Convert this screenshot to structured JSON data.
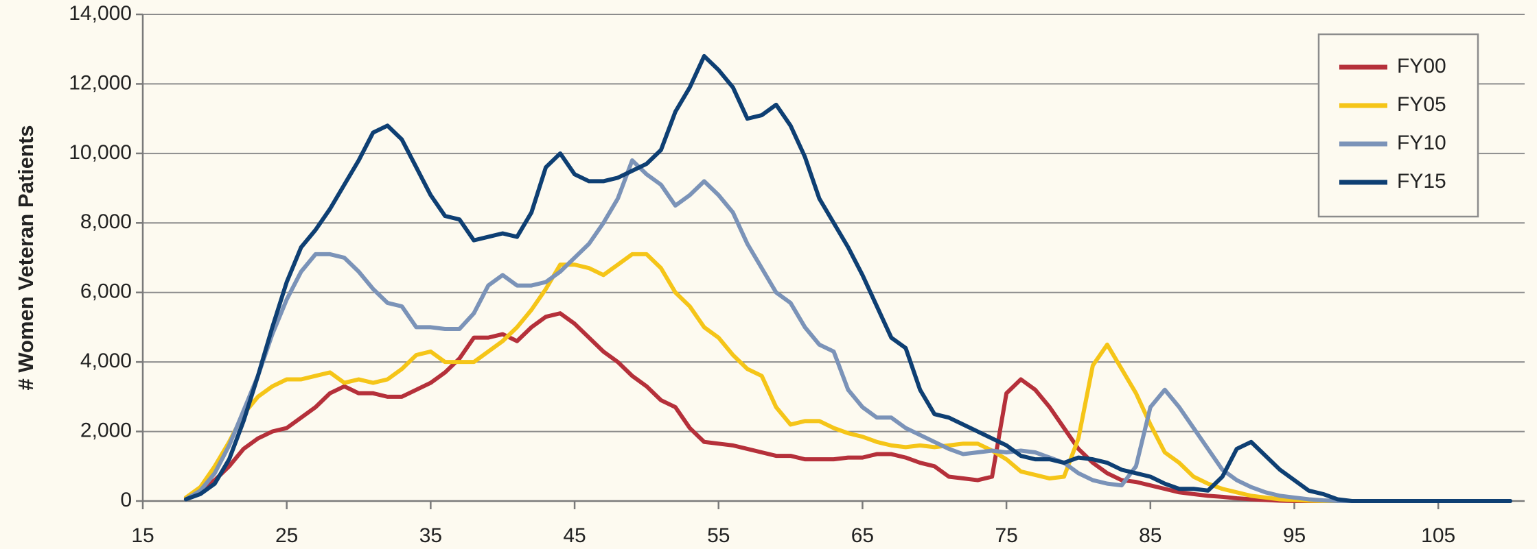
{
  "chart_data": {
    "type": "line",
    "y_label": "# Women Veteran Patients",
    "x": [
      18,
      19,
      20,
      21,
      22,
      23,
      24,
      25,
      26,
      27,
      28,
      29,
      30,
      31,
      32,
      33,
      34,
      35,
      36,
      37,
      38,
      39,
      40,
      41,
      42,
      43,
      44,
      45,
      46,
      47,
      48,
      49,
      50,
      51,
      52,
      53,
      54,
      55,
      56,
      57,
      58,
      59,
      60,
      61,
      62,
      63,
      64,
      65,
      66,
      67,
      68,
      69,
      70,
      71,
      72,
      73,
      74,
      75,
      76,
      77,
      78,
      79,
      80,
      81,
      82,
      83,
      84,
      85,
      86,
      87,
      88,
      89,
      90,
      91,
      92,
      93,
      94,
      95,
      96,
      97,
      98,
      99,
      100,
      101,
      102,
      103,
      104,
      105,
      106,
      107,
      108,
      109,
      110
    ],
    "series": [
      {
        "name": "FY00",
        "color": "#b5303a",
        "values": [
          100,
          300,
          600,
          1000,
          1500,
          1800,
          2000,
          2100,
          2400,
          2700,
          3100,
          3300,
          3100,
          3100,
          3000,
          3000,
          3200,
          3400,
          3700,
          4100,
          4700,
          4700,
          4800,
          4600,
          5000,
          5300,
          5400,
          5100,
          4700,
          4300,
          4000,
          3600,
          3300,
          2900,
          2700,
          2100,
          1700,
          1650,
          1600,
          1500,
          1400,
          1300,
          1300,
          1200,
          1200,
          1200,
          1250,
          1250,
          1350,
          1350,
          1250,
          1100,
          1000,
          700,
          650,
          600,
          700,
          3100,
          3500,
          3200,
          2700,
          2100,
          1500,
          1100,
          800,
          600,
          550,
          450,
          350,
          250,
          200,
          150,
          120,
          80,
          50,
          30,
          10,
          0,
          0,
          0,
          0,
          0,
          0,
          0,
          0,
          0,
          0,
          0,
          0,
          0,
          0,
          0,
          0
        ]
      },
      {
        "name": "FY05",
        "color": "#f5c518",
        "values": [
          100,
          400,
          1000,
          1700,
          2500,
          3000,
          3300,
          3500,
          3500,
          3600,
          3700,
          3400,
          3500,
          3400,
          3500,
          3800,
          4200,
          4300,
          4000,
          4000,
          4000,
          4300,
          4600,
          5000,
          5500,
          6100,
          6800,
          6800,
          6700,
          6500,
          6800,
          7100,
          7100,
          6700,
          6000,
          5600,
          5000,
          4700,
          4200,
          3800,
          3600,
          2700,
          2200,
          2300,
          2300,
          2100,
          1950,
          1850,
          1700,
          1600,
          1550,
          1600,
          1550,
          1600,
          1650,
          1650,
          1450,
          1200,
          850,
          750,
          650,
          700,
          1800,
          3900,
          4500,
          3800,
          3100,
          2200,
          1400,
          1100,
          700,
          500,
          350,
          250,
          150,
          100,
          50,
          30,
          10,
          0,
          0,
          0,
          0,
          0,
          0,
          0,
          0,
          0,
          0,
          0,
          0,
          0,
          0
        ]
      },
      {
        "name": "FY10",
        "color": "#7b93b8",
        "values": [
          50,
          300,
          800,
          1600,
          2600,
          3600,
          4800,
          5800,
          6600,
          7100,
          7100,
          7000,
          6600,
          6100,
          5700,
          5600,
          5000,
          5000,
          4950,
          4950,
          5400,
          6200,
          6500,
          6200,
          6200,
          6300,
          6600,
          7000,
          7400,
          8000,
          8700,
          9800,
          9400,
          9100,
          8500,
          8800,
          9200,
          8800,
          8300,
          7400,
          6700,
          6000,
          5700,
          5000,
          4500,
          4300,
          3200,
          2700,
          2400,
          2400,
          2100,
          1900,
          1700,
          1500,
          1350,
          1400,
          1450,
          1400,
          1450,
          1400,
          1250,
          1100,
          800,
          600,
          500,
          450,
          1000,
          2700,
          3200,
          2700,
          2100,
          1500,
          900,
          600,
          400,
          250,
          150,
          100,
          50,
          20,
          0,
          0,
          0,
          0,
          0,
          0,
          0,
          0,
          0,
          0,
          0,
          0,
          0
        ]
      },
      {
        "name": "FY15",
        "color": "#0e3f73",
        "values": [
          50,
          200,
          500,
          1200,
          2300,
          3600,
          5000,
          6300,
          7300,
          7800,
          8400,
          9100,
          9800,
          10600,
          10800,
          10400,
          9600,
          8800,
          8200,
          8100,
          7500,
          7600,
          7700,
          7600,
          8300,
          9600,
          10000,
          9400,
          9200,
          9200,
          9300,
          9500,
          9700,
          10100,
          11200,
          11900,
          12800,
          12400,
          11900,
          11000,
          11100,
          11400,
          10800,
          9900,
          8700,
          8000,
          7300,
          6500,
          5600,
          4700,
          4400,
          3200,
          2500,
          2400,
          2200,
          2000,
          1800,
          1600,
          1300,
          1200,
          1200,
          1100,
          1250,
          1200,
          1100,
          900,
          800,
          700,
          500,
          350,
          350,
          300,
          700,
          1500,
          1700,
          1300,
          900,
          600,
          300,
          200,
          50,
          0,
          0,
          0,
          0,
          0,
          0,
          0,
          0,
          0,
          0,
          0,
          0
        ]
      }
    ],
    "xlim": [
      15,
      111
    ],
    "xticks": [
      15,
      25,
      35,
      45,
      55,
      65,
      75,
      85,
      95,
      105
    ],
    "ylim": [
      0,
      14000
    ],
    "yticks": [
      0,
      {
        "value": 2000,
        "label": "2,000"
      },
      {
        "value": 4000,
        "label": "4,000"
      },
      {
        "value": 6000,
        "label": "6,000"
      },
      {
        "value": 8000,
        "label": "8,000"
      },
      {
        "value": 10000,
        "label": "10,000"
      },
      {
        "value": 12000,
        "label": "12,000"
      },
      {
        "value": 14000,
        "label": "14,000"
      }
    ],
    "grid": true,
    "legend": "upper right"
  }
}
